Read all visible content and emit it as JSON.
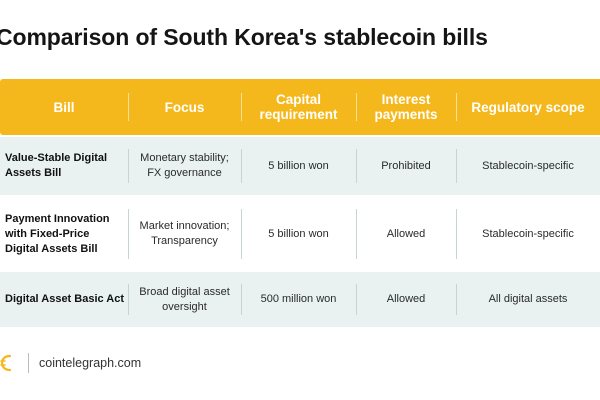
{
  "title": "Comparison of South Korea's stablecoin bills",
  "table": {
    "headers": [
      "Bill",
      "Focus",
      "Capital requirement",
      "Interest payments",
      "Regulatory scope"
    ],
    "rows": [
      [
        "Value-Stable Digital Assets Bill",
        "Monetary stability; FX governance",
        "5 billion won",
        "Prohibited",
        "Stablecoin-specific"
      ],
      [
        "Payment Innovation with Fixed-Price Digital Assets Bill",
        "Market innovation; Transparency",
        "5 billion won",
        "Allowed",
        "Stablecoin-specific"
      ],
      [
        "Digital Asset Basic Act",
        "Broad digital asset oversight",
        "500 million won",
        "Allowed",
        "All digital assets"
      ]
    ]
  },
  "colors": {
    "header_bg": "#f5b81c",
    "row_shade": "#e9f1f1",
    "text": "#1a1a1a"
  },
  "footer": {
    "logo_icon": "cointelegraph-logo-icon",
    "site": "cointelegraph.com"
  }
}
